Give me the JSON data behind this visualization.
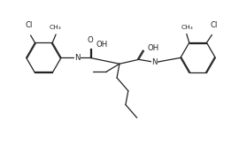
{
  "background_color": "#ffffff",
  "line_color": "#222222",
  "line_width": 0.9,
  "font_size": 6.2,
  "figsize": [
    2.7,
    1.8
  ],
  "dpi": 100,
  "xlim": [
    0,
    27
  ],
  "ylim": [
    0,
    18
  ]
}
